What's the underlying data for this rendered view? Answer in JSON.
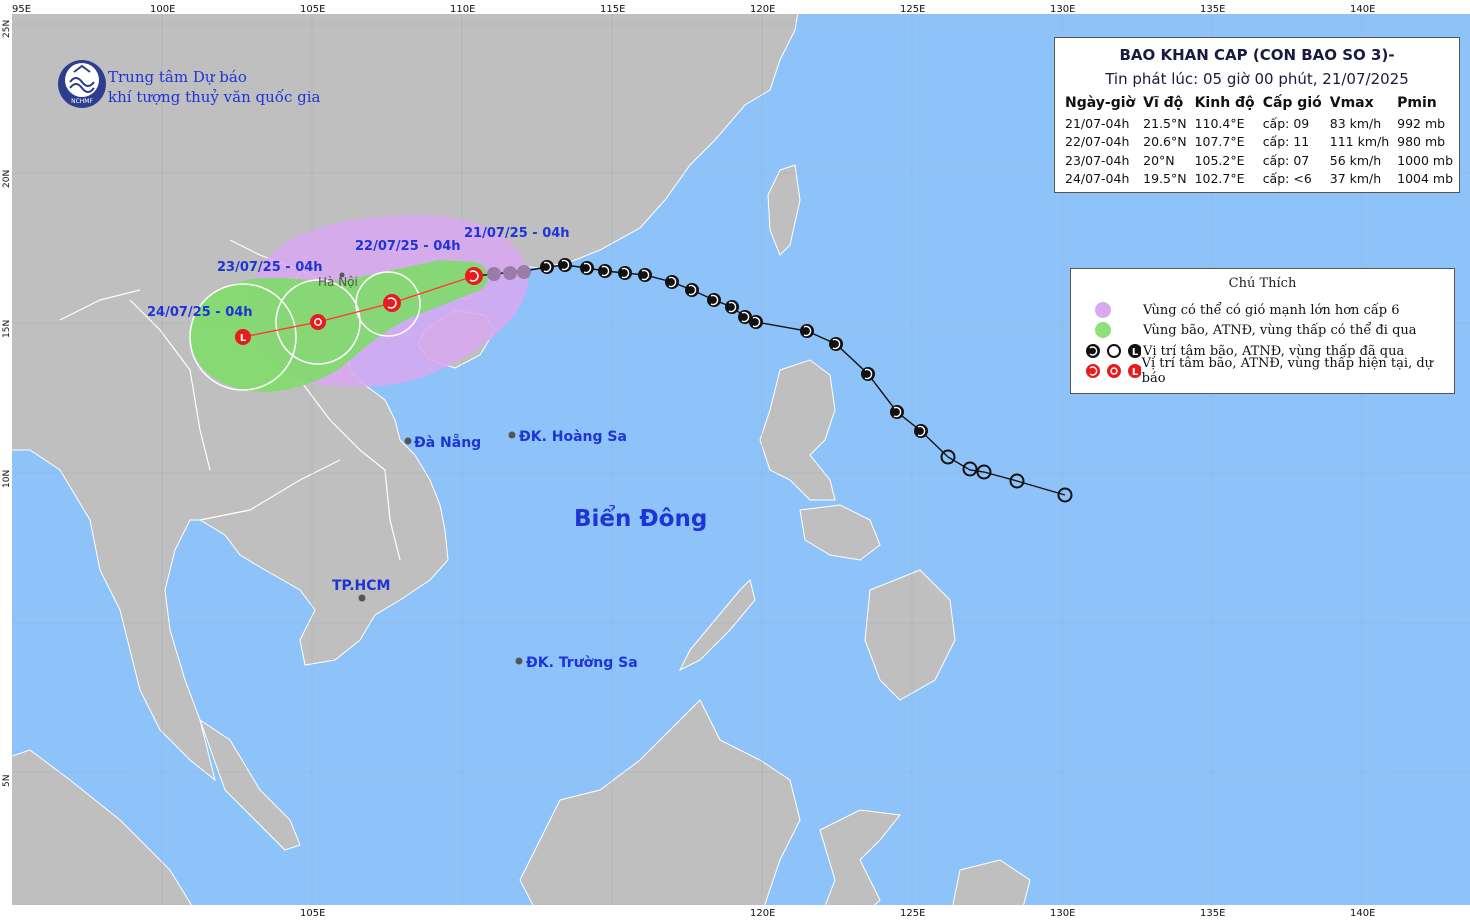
{
  "org": {
    "line1": "Trung tâm Dự báo",
    "line2": "khí tượng thuỷ văn quốc gia",
    "logo_text": "NCHMF"
  },
  "info": {
    "title": "BAO KHAN CAP (CON BAO SO 3)-",
    "issued": "Tin phát lúc: 05 giờ 00 phút, 21/07/2025",
    "headers": [
      "Ngày-giờ",
      "Vĩ độ",
      "Kinh độ",
      "Cấp gió",
      "Vmax",
      "Pmin"
    ],
    "rows": [
      [
        "21/07-04h",
        "21.5°N",
        "110.4°E",
        "cấp: 09",
        "83 km/h",
        "992 mb"
      ],
      [
        "22/07-04h",
        "20.6°N",
        "107.7°E",
        "cấp: 11",
        "111 km/h",
        "980 mb"
      ],
      [
        "23/07-04h",
        "20°N",
        "105.2°E",
        "cấp: 07",
        "56 km/h",
        "1000 mb"
      ],
      [
        "24/07-04h",
        "19.5°N",
        "102.7°E",
        "cấp: <6",
        "37 km/h",
        "1004 mb"
      ]
    ]
  },
  "legend": {
    "title": "Chú Thích",
    "items": [
      "Vùng có thể có gió mạnh lớn hơn cấp 6",
      "Vùng bão, ATNĐ, vùng thấp có thể đi qua",
      "Vị trí tâm bão, ATNĐ, vùng thấp đã qua",
      "Vị trí tâm bão, ATNĐ, vùng thấp hiện tại, dự báo"
    ],
    "colors": {
      "wind_zone": "#d8a8f0",
      "track_zone": "#8ee07a",
      "past": "#000000",
      "forecast": "#e81c1c"
    }
  },
  "map": {
    "lon_top": [
      "95E",
      "100E",
      "105E",
      "110E",
      "115E",
      "120E",
      "125E",
      "130E",
      "135E",
      "140E"
    ],
    "lon_bottom": [
      "105E",
      "120E",
      "125E",
      "130E",
      "135E",
      "140E"
    ],
    "lat_left": [
      "25N",
      "20N",
      "15N",
      "10N",
      "5N"
    ],
    "sea_name": "Biển Đông",
    "places": {
      "hanoi": "Hà Nội",
      "danang": "Đà Nẵng",
      "hoangsa": "ĐK. Hoàng Sa",
      "hcm": "TP.HCM",
      "truongsa": "ĐK. Trường Sa"
    },
    "forecast_labels": [
      "21/07/25 - 04h",
      "22/07/25 - 04h",
      "23/07/25 - 04h",
      "24/07/25 - 04h"
    ],
    "colors": {
      "sea": "#8ec3fa",
      "land": "#bfbfbf",
      "border": "#ffffff",
      "track_line": "#ff3a2a",
      "label_blue": "#1f34d6"
    }
  }
}
